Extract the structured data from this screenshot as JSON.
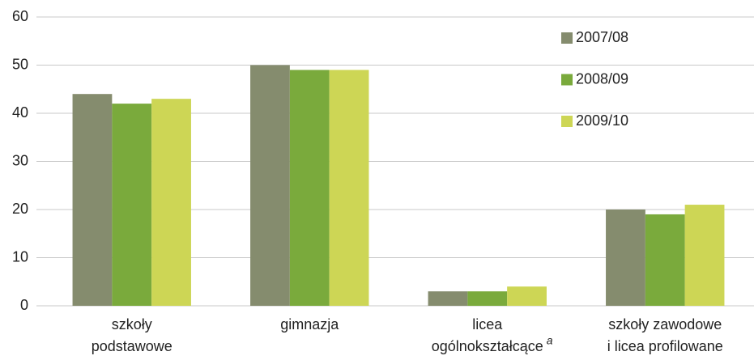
{
  "chart_data": {
    "type": "bar",
    "categories": [
      [
        "szkoły",
        "podstawowe"
      ],
      [
        "gimnazja"
      ],
      [
        "licea",
        "ogólnokształcące"
      ],
      [
        "szkoły zawodowe",
        "i licea profilowane"
      ]
    ],
    "footnote_marks": [
      null,
      null,
      "a",
      null
    ],
    "series": [
      {
        "name": "2007/08",
        "color": "#858c6e",
        "values": [
          44,
          50,
          3,
          20
        ]
      },
      {
        "name": "2008/09",
        "color": "#7aaa3c",
        "values": [
          42,
          49,
          3,
          19
        ]
      },
      {
        "name": "2009/10",
        "color": "#cdd655",
        "values": [
          43,
          49,
          4,
          21
        ]
      }
    ],
    "ylim": [
      0,
      60
    ],
    "yticks": [
      0,
      10,
      20,
      30,
      40,
      50,
      60
    ],
    "grid": true,
    "legend": "top-right"
  }
}
